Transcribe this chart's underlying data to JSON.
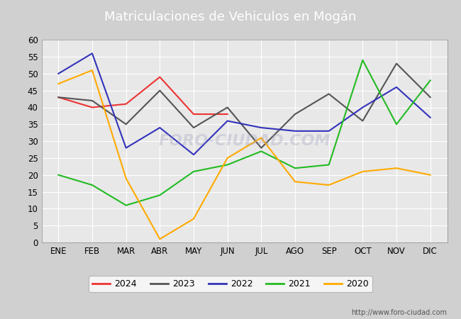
{
  "title": "Matriculaciones de Vehiculos en Mogán",
  "months": [
    "ENE",
    "FEB",
    "MAR",
    "ABR",
    "MAY",
    "JUN",
    "JUL",
    "AGO",
    "SEP",
    "OCT",
    "NOV",
    "DIC"
  ],
  "series": {
    "2024": [
      43,
      40,
      41,
      49,
      38,
      38,
      null,
      null,
      null,
      null,
      null,
      null
    ],
    "2023": [
      43,
      42,
      35,
      45,
      34,
      40,
      28,
      38,
      44,
      36,
      53,
      43
    ],
    "2022": [
      50,
      56,
      28,
      34,
      26,
      36,
      34,
      33,
      33,
      40,
      46,
      37
    ],
    "2021": [
      20,
      17,
      11,
      14,
      21,
      23,
      27,
      22,
      23,
      54,
      35,
      48
    ],
    "2020": [
      47,
      51,
      19,
      1,
      7,
      25,
      31,
      18,
      17,
      21,
      22,
      20
    ]
  },
  "colors": {
    "2024": "#ee3333",
    "2023": "#555555",
    "2022": "#3333bb",
    "2021": "#22bb22",
    "2020": "#ffaa00"
  },
  "ylim": [
    0,
    60
  ],
  "yticks": [
    0,
    5,
    10,
    15,
    20,
    25,
    30,
    35,
    40,
    45,
    50,
    55,
    60
  ],
  "fig_bg_color": "#d0d0d0",
  "plot_bg_color": "#e8e8e8",
  "title_bg_color": "#5b9bd5",
  "title_text_color": "white",
  "title_fontsize": 13,
  "grid_color": "white",
  "url": "http://www.foro-ciudad.com",
  "watermark": "FORO-CIUDAD.COM",
  "watermark_color": "#9999bb",
  "watermark_alpha": 0.3
}
